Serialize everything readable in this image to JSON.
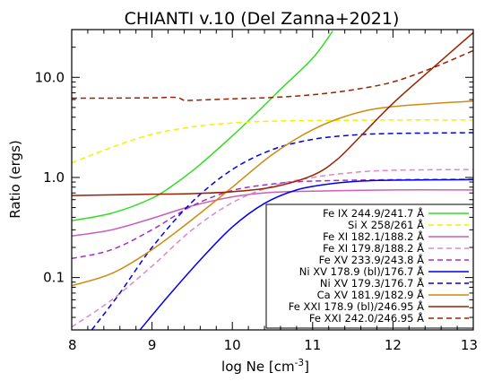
{
  "chart_data": {
    "type": "line",
    "title": "CHIANTI v.10 (Del Zanna+2021)",
    "xlabel": "log Ne [cm",
    "xlabel_sup": "-3",
    "xlabel_end": "]",
    "ylabel": "Ratio (ergs)",
    "xlim": [
      8,
      13
    ],
    "ylim": [
      0.03,
      30
    ],
    "yscale": "log",
    "grid": false,
    "legend_position": "bottom-right",
    "x_ticks": [
      8,
      9,
      10,
      11,
      12,
      13
    ],
    "x_tick_labels": [
      "8",
      "9",
      "10",
      "11",
      "12",
      "13"
    ],
    "y_ticks": [
      0.1,
      1,
      10
    ],
    "y_tick_labels": [
      "0.1",
      "1.0",
      "10.0"
    ],
    "series": [
      {
        "name": "Fe IX 244.9/241.7 Å",
        "color": "#33dd22",
        "dash": "solid",
        "x": [
          8.0,
          8.5,
          9.0,
          9.3,
          9.6,
          10.0,
          10.3,
          10.6,
          11.0,
          11.25
        ],
        "y": [
          0.37,
          0.44,
          0.62,
          0.88,
          1.35,
          2.6,
          4.4,
          7.6,
          15.5,
          29
        ]
      },
      {
        "name": "Si X 258/261 Å",
        "color": "#f2f200",
        "dash": "dash",
        "x": [
          8.0,
          8.5,
          9.0,
          9.5,
          10.0,
          10.5,
          11.0,
          12.0,
          13.0
        ],
        "y": [
          1.4,
          2.0,
          2.7,
          3.2,
          3.5,
          3.65,
          3.7,
          3.75,
          3.75
        ]
      },
      {
        "name": "Fe XI 182.1/188.2 Å",
        "color": "#c860b8",
        "dash": "solid",
        "x": [
          8.0,
          8.5,
          9.0,
          9.5,
          10.0,
          10.5,
          11.0,
          12.0,
          13.0
        ],
        "y": [
          0.26,
          0.3,
          0.39,
          0.52,
          0.64,
          0.71,
          0.73,
          0.75,
          0.75
        ]
      },
      {
        "name": "Fe XI 179.8/188.2 Å",
        "color": "#dd88c8",
        "dash": "dash",
        "x": [
          8.0,
          8.5,
          9.0,
          9.5,
          10.0,
          10.5,
          11.0,
          11.5,
          12.0,
          13.0
        ],
        "y": [
          0.032,
          0.06,
          0.13,
          0.3,
          0.56,
          0.82,
          1.0,
          1.12,
          1.18,
          1.2
        ]
      },
      {
        "name": "Fe XV 233.9/243.8 Å",
        "color": "#a030cc",
        "dash": "dash",
        "x": [
          8.0,
          8.5,
          9.0,
          9.5,
          10.0,
          10.5,
          11.0,
          12.0,
          13.0
        ],
        "y": [
          0.155,
          0.19,
          0.3,
          0.52,
          0.74,
          0.86,
          0.92,
          0.95,
          0.96
        ]
      },
      {
        "name": "Ni XV 178.9 (bl)/176.7 Å",
        "color": "#0000ee",
        "dash": "solid",
        "x": [
          8.85,
          9.2,
          9.6,
          10.0,
          10.4,
          10.8,
          11.2,
          11.6,
          12.0,
          13.0
        ],
        "y": [
          0.03,
          0.065,
          0.15,
          0.32,
          0.55,
          0.75,
          0.86,
          0.92,
          0.94,
          0.95
        ]
      },
      {
        "name": "Ni XV 179.3/176.7 Å",
        "color": "#0000ee",
        "dash": "dash",
        "x": [
          8.25,
          8.6,
          9.0,
          9.5,
          10.0,
          10.5,
          11.0,
          11.5,
          12.0,
          13.0
        ],
        "y": [
          0.03,
          0.07,
          0.2,
          0.57,
          1.2,
          1.9,
          2.4,
          2.65,
          2.75,
          2.8
        ]
      },
      {
        "name": "Ca XV 181.9/182.9 Å",
        "color": "#d08a10",
        "dash": "solid",
        "x": [
          8.0,
          8.5,
          9.0,
          9.5,
          10.0,
          10.5,
          11.0,
          11.5,
          12.0,
          13.0
        ],
        "y": [
          0.083,
          0.11,
          0.19,
          0.38,
          0.8,
          1.7,
          3.0,
          4.3,
          5.1,
          5.8
        ]
      },
      {
        "name": "Fe XXI 178.9 (bl)/246.95 Å",
        "color": "#992200",
        "dash": "solid",
        "x": [
          8.0,
          8.5,
          9.0,
          9.5,
          10.0,
          10.5,
          11.0,
          11.3,
          11.6,
          12.0,
          12.5,
          13.0
        ],
        "y": [
          0.66,
          0.67,
          0.68,
          0.69,
          0.72,
          0.8,
          1.05,
          1.5,
          2.6,
          5.5,
          12.5,
          28
        ]
      },
      {
        "name": "Fe XXI 242.0/246.95 Å",
        "color": "#992200",
        "dash": "dash",
        "x": [
          8.0,
          8.5,
          9.0,
          9.3,
          9.4,
          9.5,
          10.0,
          10.5,
          11.0,
          11.5,
          12.0,
          12.5,
          13.0
        ],
        "y": [
          6.2,
          6.2,
          6.25,
          6.3,
          5.9,
          5.9,
          6.1,
          6.3,
          6.7,
          7.5,
          9.0,
          12.5,
          18.5
        ]
      }
    ]
  }
}
